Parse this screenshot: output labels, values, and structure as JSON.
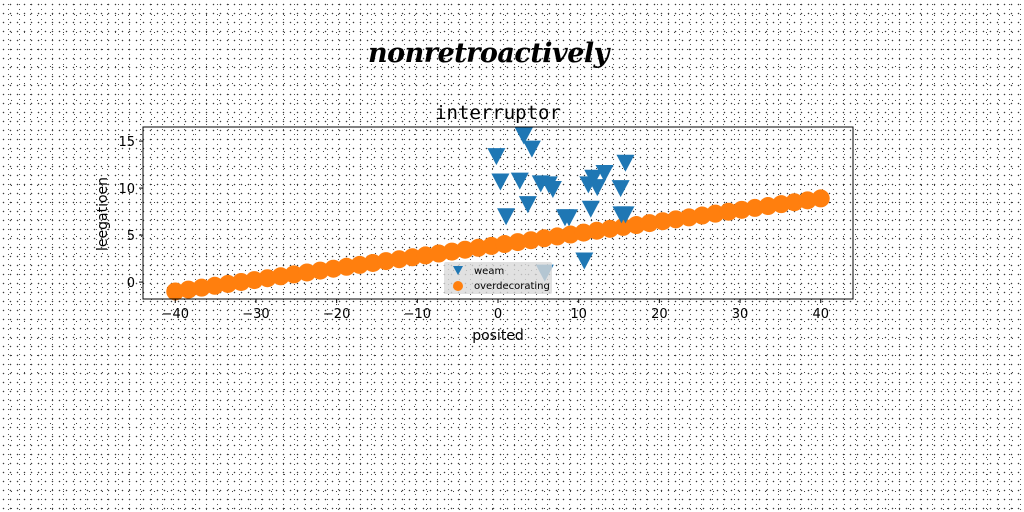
{
  "suptitle": "nonretroactively",
  "chart_data": {
    "type": "scatter",
    "title": "interruptor",
    "xlabel": "posited",
    "ylabel": "leegatioen",
    "xlim": [
      -44,
      44
    ],
    "ylim": [
      -1.8,
      16.5
    ],
    "xticks": [
      -40,
      -30,
      -20,
      -10,
      0,
      10,
      20,
      30,
      40
    ],
    "yticks": [
      0,
      5,
      10,
      15
    ],
    "tick_labels_x": [
      "−40",
      "−30",
      "−20",
      "−10",
      "0",
      "10",
      "20",
      "30",
      "40"
    ],
    "tick_labels_y": [
      "0",
      "5",
      "10",
      "15"
    ],
    "grid": false,
    "legend_position": "lower-center",
    "series": [
      {
        "name": "weam",
        "marker": "triangle-down",
        "color": "#1f77b4",
        "x": [
          3.2,
          4.2,
          -0.2,
          0.3,
          2.7,
          5.3,
          6.3,
          6.8,
          3.7,
          1.0,
          8.3,
          8.8,
          11.8,
          13.2,
          15.8,
          11.2,
          12.3,
          15.2,
          11.5,
          15.3,
          15.8,
          10.7,
          5.8
        ],
        "y": [
          15.6,
          14.2,
          13.4,
          10.7,
          10.8,
          10.5,
          10.4,
          9.9,
          8.3,
          7.0,
          6.9,
          6.9,
          11.1,
          11.6,
          12.7,
          10.4,
          10.1,
          10.0,
          7.8,
          7.2,
          7.2,
          2.3,
          1.0
        ]
      },
      {
        "name": "overdecorating",
        "marker": "circle",
        "color": "#ff7f0e",
        "x_range": [
          -40,
          40
        ],
        "count": 50,
        "y_range": [
          -1.0,
          8.9
        ]
      }
    ]
  }
}
